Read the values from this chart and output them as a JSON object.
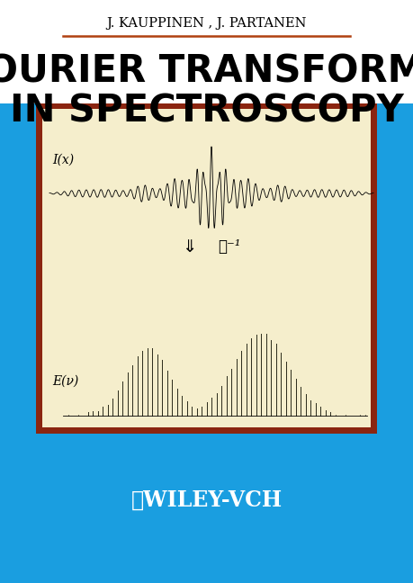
{
  "bg_color": "#ffffff",
  "blue_color": "#1a9ee0",
  "cream_color": "#f5eecc",
  "dark_red_color": "#8b2510",
  "author_text": "J. KAUPPINEN , J. PARTANEN",
  "title_line1": "FOURIER TRANSFORMS",
  "title_line2": "IN SPECTROSCOPY",
  "publisher_text": "ⓅWILEY-VCH",
  "label_ix": "I(x)",
  "label_ev": "E(ν)",
  "arrow_label": "⇓",
  "fourier_label": "ℱ⁻¹",
  "separator_color": "#b04010",
  "author_fontsize": 10.5,
  "title_fontsize": 30,
  "publisher_fontsize": 17,
  "label_fontsize": 10,
  "wiley_circle": "Ⓟ"
}
